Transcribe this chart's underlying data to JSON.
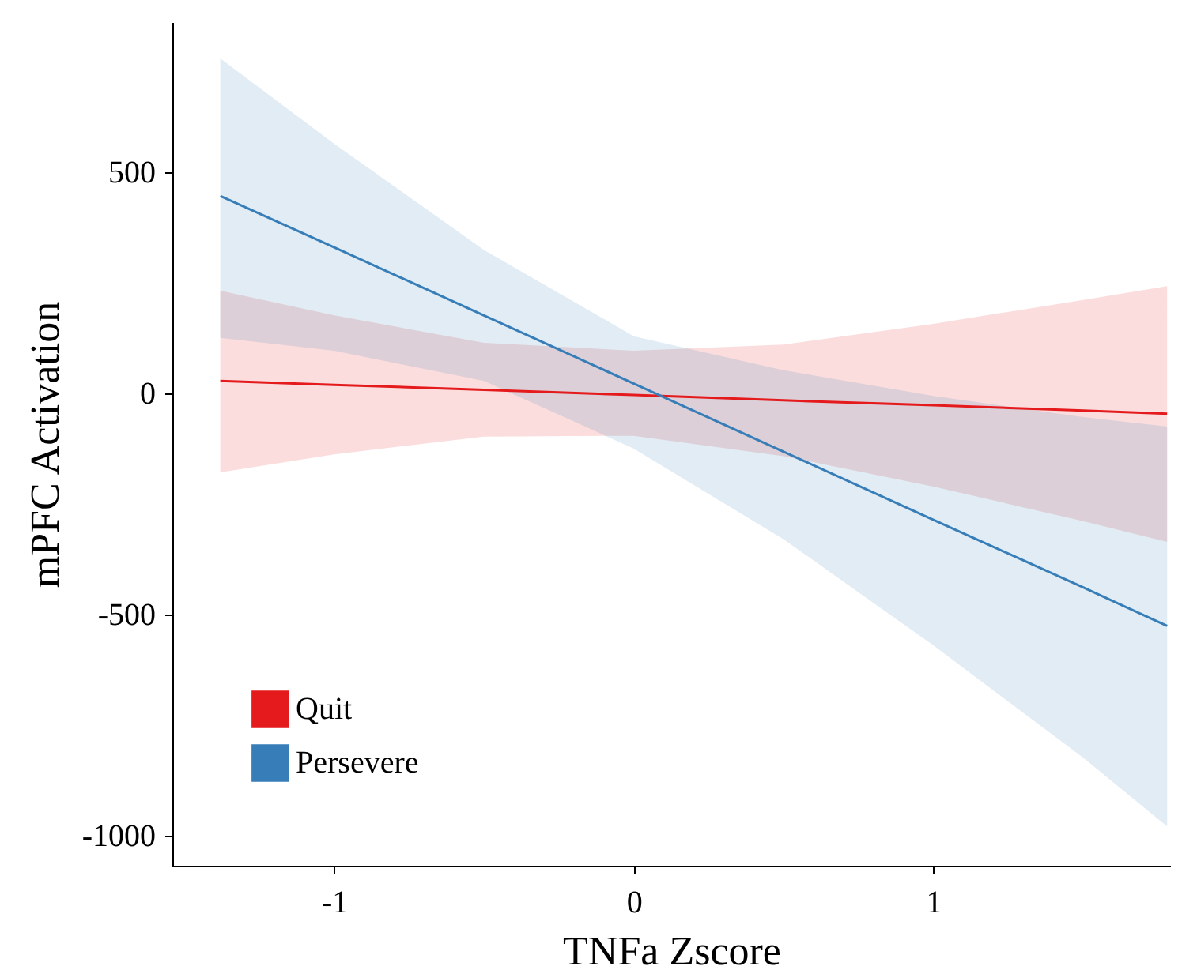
{
  "chart_data": {
    "type": "line",
    "xlabel": "TNFa Zscore",
    "ylabel": "mPFC Activation",
    "x": [
      -1.38,
      -1,
      -0.5,
      0,
      0.5,
      1,
      1.5,
      1.78
    ],
    "series": [
      {
        "name": "Quit",
        "color": "#e41a1c",
        "values": [
          28,
          19,
          8,
          -4,
          -16,
          -27,
          -39,
          -46
        ],
        "lower": [
          -179,
          -138,
          -98,
          -96,
          -142,
          -211,
          -289,
          -336
        ],
        "upper": [
          232,
          176,
          114,
          96,
          110,
          157,
          211,
          242
        ]
      },
      {
        "name": "Persevere",
        "color": "#377eb8",
        "values": [
          446,
          330,
          176,
          22,
          -132,
          -286,
          -439,
          -526
        ],
        "lower": [
          125,
          96,
          28,
          -125,
          -330,
          -570,
          -824,
          -979
        ],
        "upper": [
          757,
          564,
          324,
          129,
          52,
          -6,
          -54,
          -75
        ]
      }
    ],
    "xlim": [
      -1.54,
      1.79
    ],
    "xticks": [
      -1,
      0,
      1
    ],
    "ylim": [
      -1068,
      839
    ],
    "yticks": [
      -1000,
      -500,
      0,
      500
    ],
    "legend": "bottom left",
    "marker": "none",
    "line_style": "solid"
  }
}
